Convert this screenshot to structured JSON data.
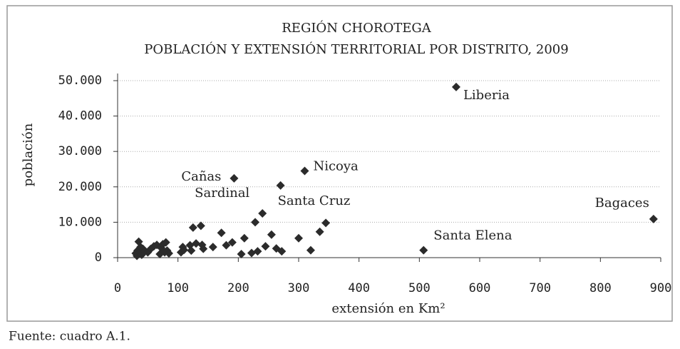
{
  "chart_data": {
    "type": "scatter",
    "title": "REGIÓN CHOROTEGA",
    "subtitle": "POBLACIÓN Y EXTENSIÓN TERRITORIAL POR DISTRITO, 2009",
    "x_label": "extensión en Km²",
    "y_label": "población",
    "source": "Fuente: cuadro A.1.",
    "color": "#2b2b2b",
    "grid": true,
    "xlim": [
      0,
      900
    ],
    "xticks": [
      0,
      100,
      200,
      300,
      400,
      500,
      600,
      700,
      800,
      900
    ],
    "ylim": [
      0,
      50000
    ],
    "yticks": [
      0,
      {
        "value": 10000,
        "label": "10.000"
      },
      {
        "value": 20000,
        "label": "20.000"
      },
      {
        "value": 30000,
        "label": "30.000"
      },
      {
        "value": 40000,
        "label": "40.000"
      },
      {
        "value": 50000,
        "label": "50.000"
      }
    ],
    "x": [
      561,
      888,
      507,
      310,
      270,
      193,
      240,
      30,
      32,
      33,
      35,
      37,
      38,
      40,
      42,
      45,
      50,
      55,
      60,
      65,
      70,
      72,
      75,
      78,
      80,
      82,
      85,
      105,
      108,
      110,
      120,
      122,
      125,
      130,
      138,
      140,
      142,
      158,
      172,
      180,
      190,
      205,
      210,
      222,
      228,
      232,
      245,
      255,
      263,
      272,
      300,
      320,
      335,
      345
    ],
    "values": [
      48200,
      10900,
      2100,
      24500,
      20400,
      22400,
      12500,
      1200,
      500,
      2000,
      4500,
      1500,
      3000,
      800,
      2500,
      1800,
      1500,
      2500,
      3200,
      3600,
      1000,
      2800,
      3800,
      1500,
      4300,
      2000,
      1200,
      1500,
      3000,
      2200,
      3500,
      2000,
      8500,
      4000,
      9000,
      3600,
      2500,
      3000,
      7000,
      3500,
      4300,
      1000,
      5500,
      1300,
      10000,
      1800,
      3200,
      6500,
      2600,
      1800,
      5500,
      2100,
      7300,
      9800
    ],
    "labels": [
      "Liberia",
      "Bagaces",
      "Santa Elena",
      "Nicoya",
      "Santa Cruz",
      "Cañas",
      "Sardinal",
      null,
      null,
      null,
      null,
      null,
      null,
      null,
      null,
      null,
      null,
      null,
      null,
      null,
      null,
      null,
      null,
      null,
      null,
      null,
      null,
      null,
      null,
      null,
      null,
      null,
      null,
      null,
      null,
      null,
      null,
      null,
      null,
      null,
      null,
      null,
      null,
      null,
      null,
      null,
      null,
      null,
      null,
      null,
      null,
      null,
      null,
      null
    ]
  }
}
